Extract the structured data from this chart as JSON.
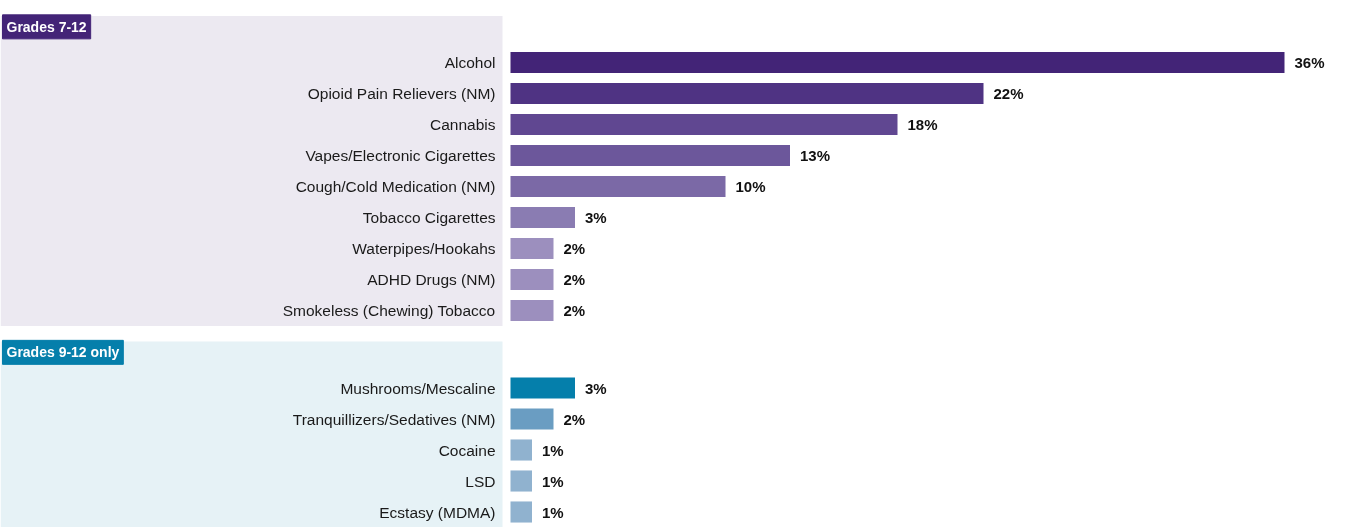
{
  "chart_data": {
    "type": "bar",
    "orientation": "horizontal",
    "categories": [
      "Alcohol",
      "Opioid Pain Relievers (NM)",
      "Cannabis",
      "Vapes/Electronic Cigarettes",
      "Cough/Cold Medication (NM)",
      "Tobacco Cigarettes",
      "Waterpipes/Hookahs",
      "ADHD Drugs (NM)",
      "Smokeless (Chewing) Tobacco",
      "Mushrooms/Mescaline",
      "Tranquillizers/Sedatives (NM)",
      "Cocaine",
      "LSD",
      "Ecstasy (MDMA)"
    ],
    "values": [
      36,
      22,
      18,
      13,
      10,
      3,
      2,
      2,
      2,
      3,
      2,
      1,
      1,
      1
    ],
    "colors": [
      "#432477",
      "#4f3383",
      "#604791",
      "#6c579b",
      "#7b69a6",
      "#8a7cb2",
      "#9c8fbe",
      "#9c8fbe",
      "#9c8fbe",
      "#057fab",
      "#6a9dc2",
      "#90b2cf",
      "#90b2cf",
      "#90b2cf"
    ],
    "value_labels": [
      "36%",
      "22%",
      "18%",
      "13%",
      "10%",
      "3%",
      "2%",
      "2%",
      "2%",
      "3%",
      "2%",
      "1%",
      "1%",
      "1%"
    ],
    "annotations": [
      "Grades 7-12",
      "Grades 9-12 only"
    ],
    "xlim": [
      0,
      36
    ],
    "tick_labels": "y"
  }
}
